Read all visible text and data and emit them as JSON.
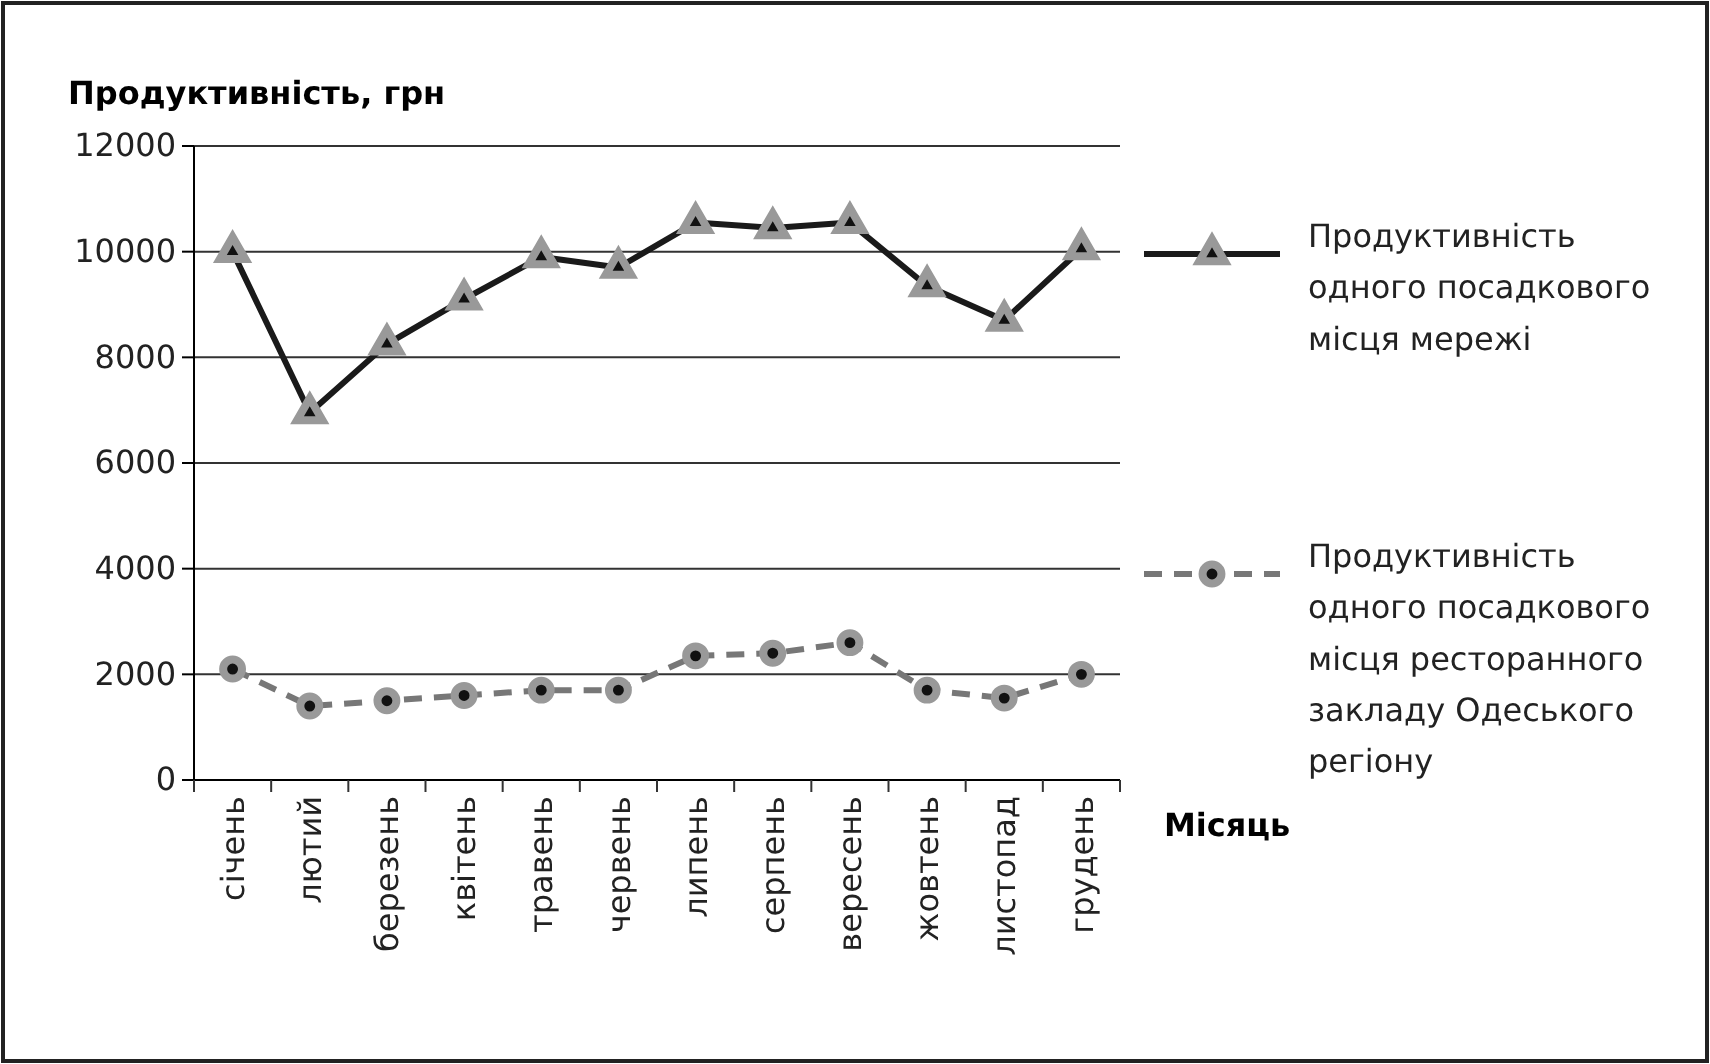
{
  "chart_data": {
    "type": "line",
    "ylabel": "Продуктивність, грн",
    "xlabel": "Місяць",
    "categories": [
      "січень",
      "лютий",
      "березень",
      "квітень",
      "травень",
      "червень",
      "липень",
      "серпень",
      "вересень",
      "жовтень",
      "листопад",
      "грудень"
    ],
    "series": [
      {
        "name": "Продуктивність одного посадкового місця мережі",
        "color": "#1a1a1a",
        "marker": "triangle",
        "line_style": "solid",
        "values": [
          10000,
          6950,
          8250,
          9100,
          9900,
          9700,
          10550,
          10450,
          10550,
          9350,
          8700,
          10050
        ]
      },
      {
        "name": "Продуктивність одного посадкового місця ресторанного закладу Одеського регіону",
        "color": "#777777",
        "marker": "circle",
        "line_style": "dashed",
        "values": [
          2100,
          1400,
          1500,
          1600,
          1700,
          1700,
          2350,
          2400,
          2600,
          1700,
          1550,
          2000
        ]
      }
    ],
    "ylim": [
      0,
      12000
    ],
    "yticks": [
      0,
      2000,
      4000,
      6000,
      8000,
      10000,
      12000
    ],
    "grid": "y",
    "legend": "right"
  }
}
